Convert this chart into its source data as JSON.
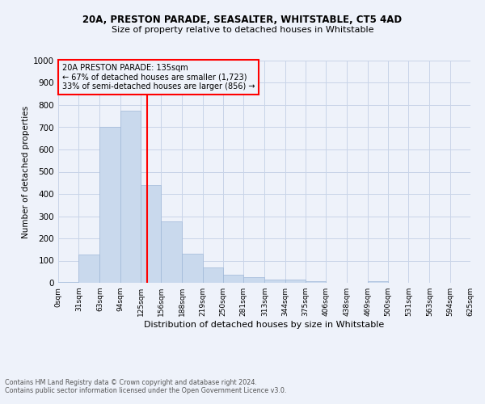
{
  "title1": "20A, PRESTON PARADE, SEASALTER, WHITSTABLE, CT5 4AD",
  "title2": "Size of property relative to detached houses in Whitstable",
  "xlabel": "Distribution of detached houses by size in Whitstable",
  "ylabel": "Number of detached properties",
  "annotation_title": "20A PRESTON PARADE: 135sqm",
  "annotation_line1": "← 67% of detached houses are smaller (1,723)",
  "annotation_line2": "33% of semi-detached houses are larger (856) →",
  "footer1": "Contains HM Land Registry data © Crown copyright and database right 2024.",
  "footer2": "Contains public sector information licensed under the Open Government Licence v3.0.",
  "bar_values": [
    5,
    127,
    700,
    775,
    440,
    275,
    130,
    68,
    38,
    25,
    13,
    13,
    7,
    0,
    0,
    8,
    0,
    0,
    0,
    0
  ],
  "bin_edges": [
    0,
    31,
    63,
    94,
    125,
    156,
    188,
    219,
    250,
    281,
    313,
    344,
    375,
    406,
    438,
    469,
    500,
    531,
    563,
    594,
    625
  ],
  "x_tick_labels": [
    "0sqm",
    "31sqm",
    "63sqm",
    "94sqm",
    "125sqm",
    "156sqm",
    "188sqm",
    "219sqm",
    "250sqm",
    "281sqm",
    "313sqm",
    "344sqm",
    "375sqm",
    "406sqm",
    "438sqm",
    "469sqm",
    "500sqm",
    "531sqm",
    "563sqm",
    "594sqm",
    "625sqm"
  ],
  "property_line_x": 135,
  "bar_color": "#c9d9ed",
  "bar_edge_color": "#a0b8d8",
  "line_color": "red",
  "grid_color": "#c8d4e8",
  "background_color": "#eef2fa",
  "ylim": [
    0,
    1000
  ],
  "yticks": [
    0,
    100,
    200,
    300,
    400,
    500,
    600,
    700,
    800,
    900,
    1000
  ]
}
